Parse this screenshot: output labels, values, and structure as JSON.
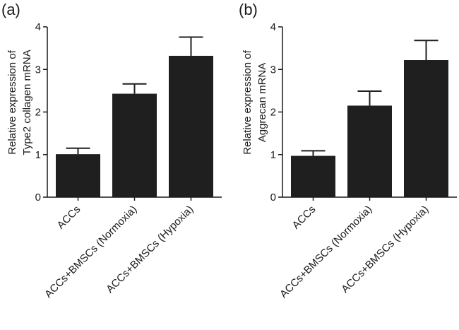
{
  "chart_data": [
    {
      "type": "bar",
      "panel": "(a)",
      "categories": [
        "ACCs",
        "ACCs+BMSCs (Normoxia)",
        "ACCs+BMSCs (Hypoxia)"
      ],
      "values": [
        1.01,
        2.43,
        3.32
      ],
      "errors": [
        0.14,
        0.23,
        0.44
      ],
      "ylabel_lines": [
        "Relative expression of",
        "Type2 collagen mRNA"
      ],
      "ylim": [
        0,
        4
      ],
      "yticks": [
        "0",
        "1",
        "2",
        "3",
        "4"
      ],
      "grid": false,
      "bar_color": "#1f1f1f"
    },
    {
      "type": "bar",
      "panel": "(b)",
      "categories": [
        "ACCs",
        "ACCs+BMSCs (Normoxia)",
        "ACCs+BMSCs (Hypoxia)"
      ],
      "values": [
        0.97,
        2.15,
        3.22
      ],
      "errors": [
        0.12,
        0.34,
        0.46
      ],
      "ylabel_lines": [
        "Relative expression of",
        "Aggrecan mRNA"
      ],
      "ylim": [
        0,
        4
      ],
      "yticks": [
        "0",
        "1",
        "2",
        "3",
        "4"
      ],
      "grid": false,
      "bar_color": "#1f1f1f"
    }
  ]
}
